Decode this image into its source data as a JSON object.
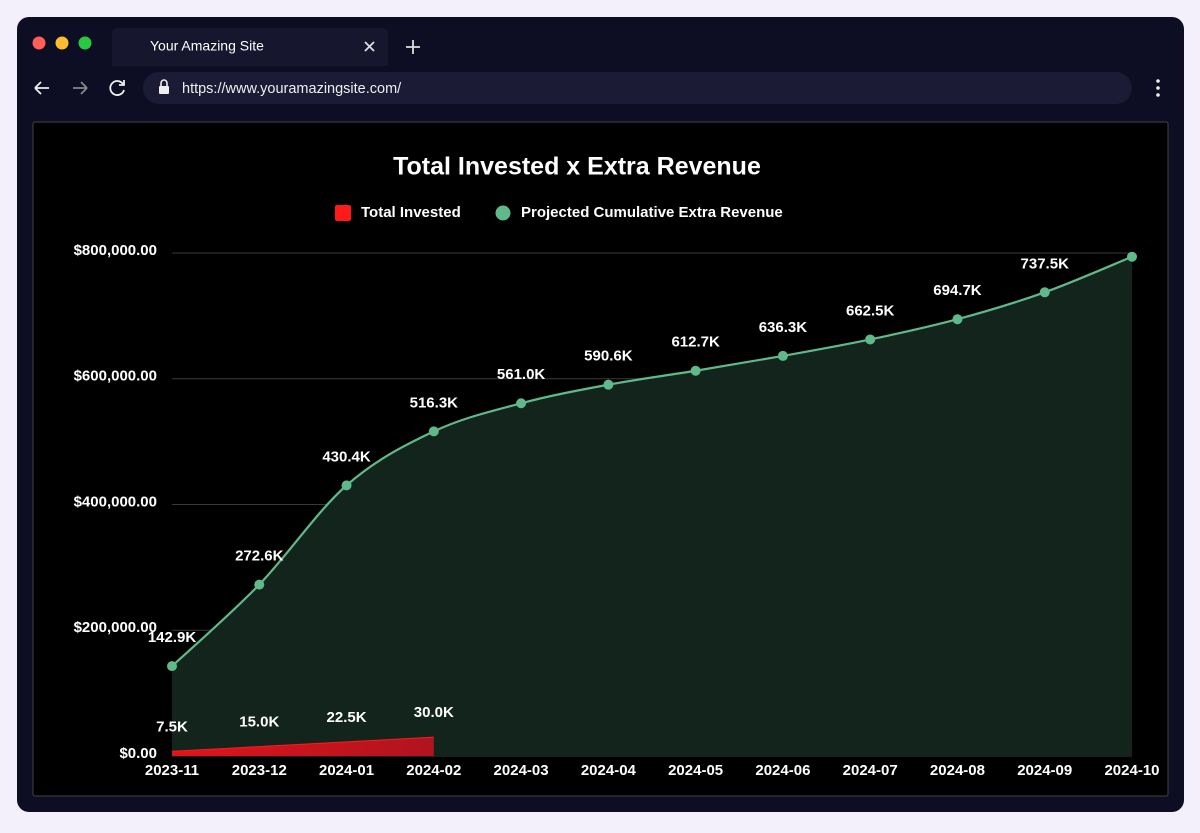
{
  "browser": {
    "tab_title": "Your Amazing Site",
    "url": "https://www.youramazingsite.com/"
  },
  "chart_data": {
    "type": "line",
    "title": "Total Invested x Extra Revenue",
    "categories": [
      "2023-11",
      "2023-12",
      "2024-01",
      "2024-02",
      "2024-03",
      "2024-04",
      "2024-05",
      "2024-06",
      "2024-07",
      "2024-08",
      "2024-09",
      "2024-10"
    ],
    "series": [
      {
        "name": "Total Invested",
        "color": "#ff1a1a",
        "values": [
          7500,
          15000,
          22500,
          30000,
          null,
          null,
          null,
          null,
          null,
          null,
          null,
          null
        ],
        "value_labels": [
          "7.5K",
          "15.0K",
          "22.5K",
          "30.0K",
          null,
          null,
          null,
          null,
          null,
          null,
          null,
          null
        ]
      },
      {
        "name": "Projected Cumulative Extra Revenue",
        "color": "#5fb98b",
        "values": [
          142900,
          272600,
          430400,
          516300,
          561000,
          590600,
          612700,
          636300,
          662500,
          694700,
          737500,
          794000
        ],
        "value_labels": [
          "142.9K",
          "272.6K",
          "430.4K",
          "516.3K",
          "561.0K",
          "590.6K",
          "612.7K",
          "636.3K",
          "662.5K",
          "694.7K",
          "737.5K",
          null
        ]
      }
    ],
    "ylim": [
      0,
      800000
    ],
    "yticks": [
      {
        "value": 0,
        "label": "$0.00"
      },
      {
        "value": 200000,
        "label": "$200,000.00"
      },
      {
        "value": 400000,
        "label": "$400,000.00"
      },
      {
        "value": 600000,
        "label": "$600,000.00"
      },
      {
        "value": 800000,
        "label": "$800,000.00"
      }
    ],
    "grid": true,
    "legend": "top"
  }
}
